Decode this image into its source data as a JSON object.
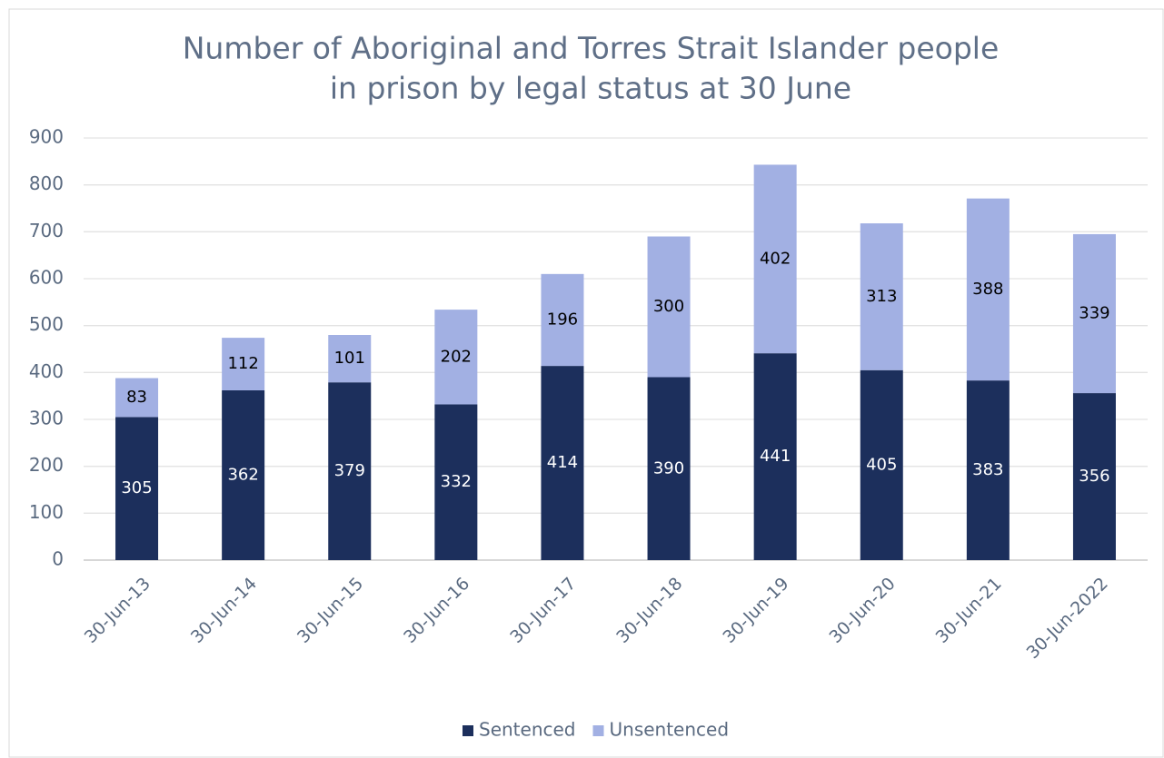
{
  "chart_data": {
    "type": "stacked_bar",
    "title": [
      "Number of Aboriginal and Torres Strait Islander people",
      "in prison by legal status at 30 June"
    ],
    "categories": [
      "30-Jun-13",
      "30-Jun-14",
      "30-Jun-15",
      "30-Jun-16",
      "30-Jun-17",
      "30-Jun-18",
      "30-Jun-19",
      "30-Jun-20",
      "30-Jun-21",
      "30-Jun-2022"
    ],
    "series": [
      {
        "name": "Sentenced",
        "color": "#1c2f5c",
        "label_color": "#ffffff",
        "values": [
          305,
          362,
          379,
          332,
          414,
          390,
          441,
          405,
          383,
          356
        ]
      },
      {
        "name": "Unsentenced",
        "color": "#a2b0e3",
        "label_color": "#000000",
        "values": [
          83,
          112,
          101,
          202,
          196,
          300,
          402,
          313,
          388,
          339
        ]
      }
    ],
    "ylim": [
      0,
      900
    ],
    "yticks": [
      0,
      100,
      200,
      300,
      400,
      500,
      600,
      700,
      800,
      900
    ],
    "grid": true,
    "legend": "bottom"
  }
}
